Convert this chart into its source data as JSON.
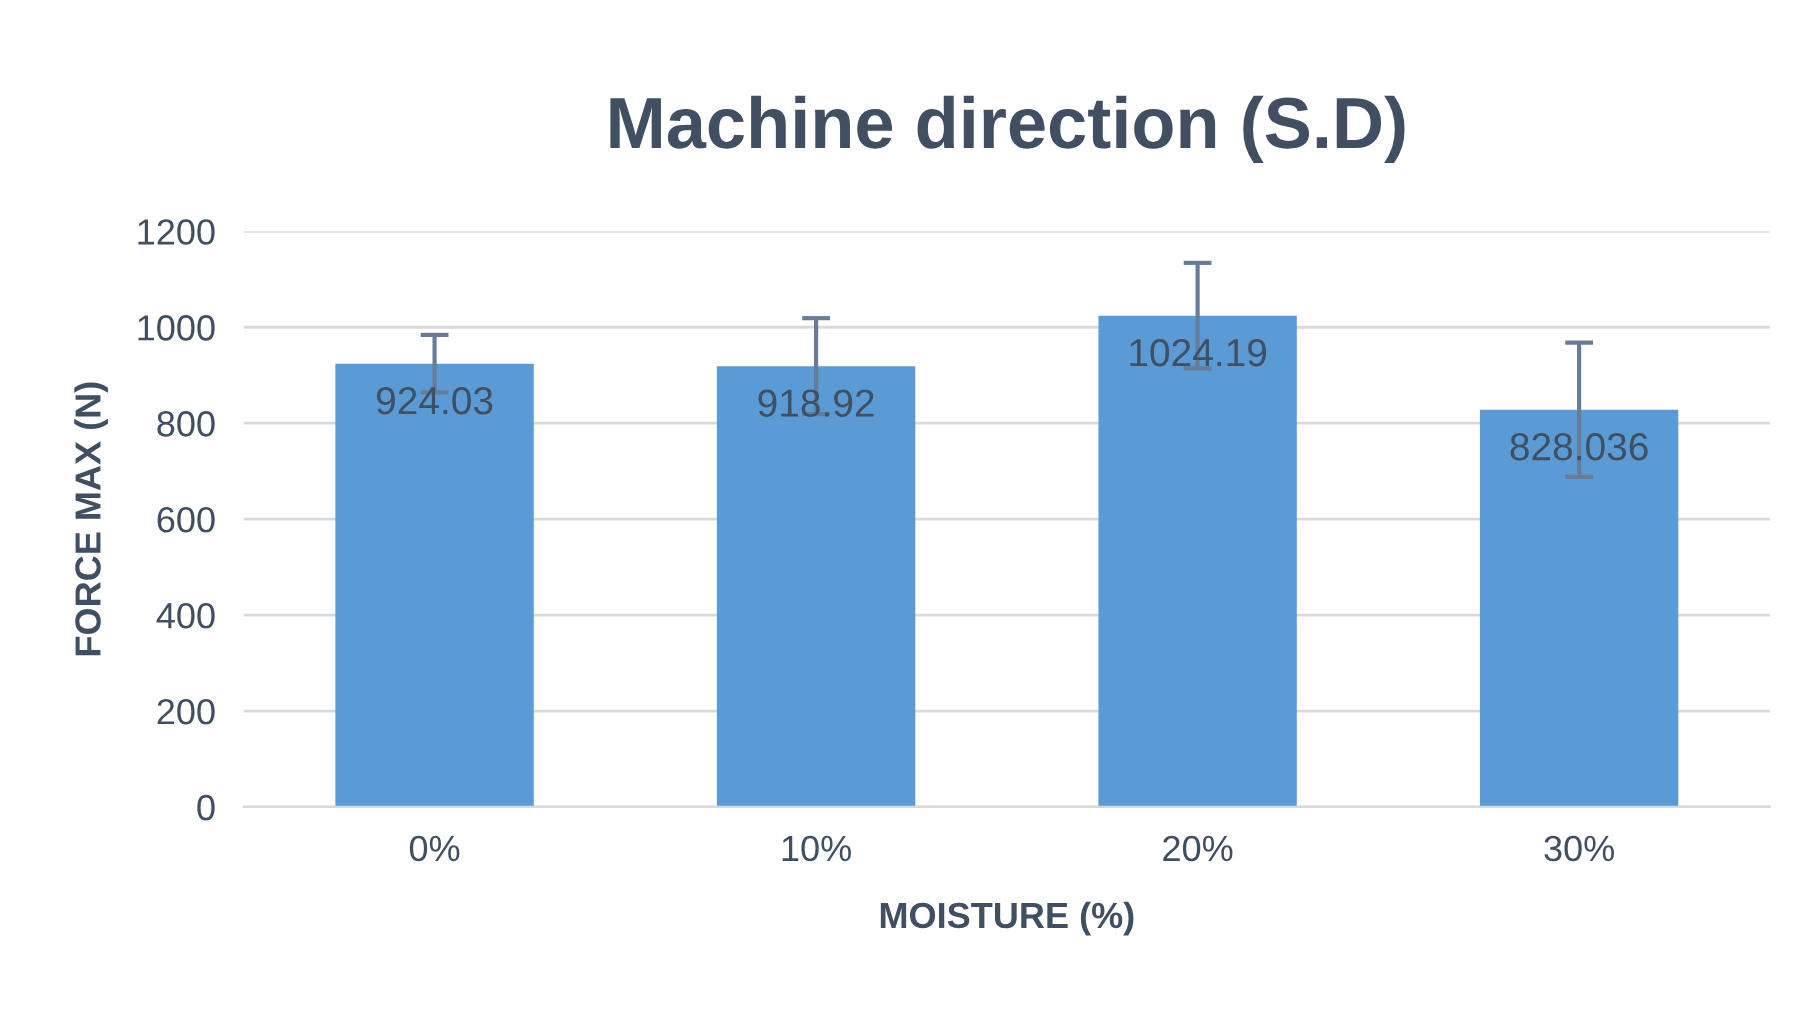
{
  "chart_data": {
    "type": "bar",
    "title": "Machine direction (S.D)",
    "xlabel": "MOISTURE (%)",
    "ylabel": "FORCE MAX (N)",
    "categories": [
      "0%",
      "10%",
      "20%",
      "30%"
    ],
    "values": [
      924.03,
      918.92,
      1024.19,
      828.036
    ],
    "errors": [
      60,
      100,
      110,
      140
    ],
    "color": "#5b9bd5",
    "ylim": [
      0,
      1200
    ],
    "yticks": [
      0,
      200,
      400,
      600,
      800,
      1000,
      1200
    ],
    "grid": "y",
    "data_labels": true,
    "legend": false
  }
}
